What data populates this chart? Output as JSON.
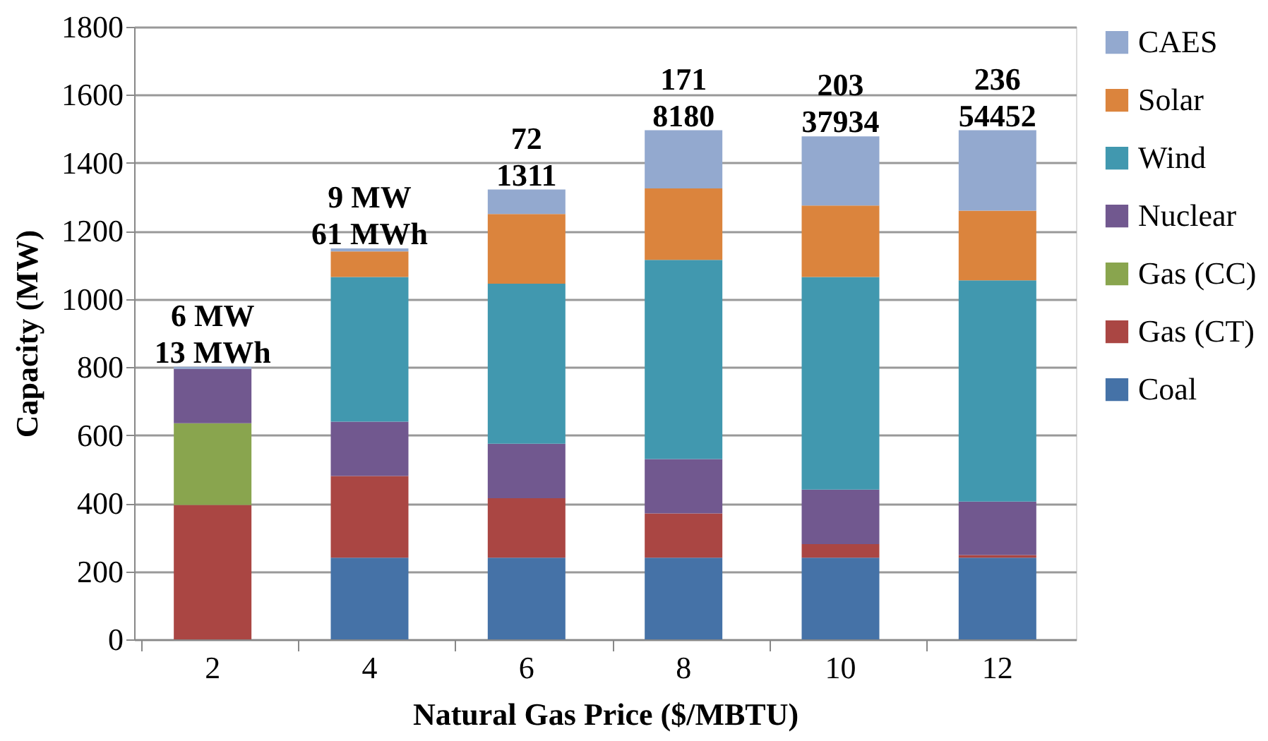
{
  "chart_data": {
    "type": "bar",
    "stacked": true,
    "xlabel": "Natural Gas Price ($/MBTU)",
    "ylabel": "Capacity (MW)",
    "categories": [
      "2",
      "4",
      "6",
      "8",
      "10",
      "12"
    ],
    "series": [
      {
        "name": "Coal",
        "color": "#4572a7",
        "values": [
          0,
          240,
          240,
          240,
          240,
          240
        ]
      },
      {
        "name": "Gas (CT)",
        "color": "#aa4643",
        "values": [
          395,
          240,
          175,
          130,
          40,
          8
        ]
      },
      {
        "name": "Gas (CC)",
        "color": "#89a54e",
        "values": [
          240,
          0,
          0,
          0,
          0,
          0
        ]
      },
      {
        "name": "Nuclear",
        "color": "#71588f",
        "values": [
          160,
          160,
          160,
          160,
          160,
          157
        ]
      },
      {
        "name": "Wind",
        "color": "#4198af",
        "values": [
          0,
          425,
          470,
          585,
          625,
          650
        ]
      },
      {
        "name": "Solar",
        "color": "#db843d",
        "values": [
          0,
          75,
          205,
          210,
          210,
          205
        ]
      },
      {
        "name": "CAES",
        "color": "#93a9cf",
        "values": [
          6,
          9,
          72,
          171,
          203,
          236
        ]
      }
    ],
    "ylim": [
      0,
      1800
    ],
    "yticks": [
      0,
      200,
      400,
      600,
      800,
      1000,
      1200,
      1400,
      1600,
      1800
    ],
    "grid": "y",
    "legend": "right",
    "annotations": [
      {
        "text": "6 MW\n13 MWh",
        "x": "2",
        "y": 801
      },
      {
        "text": "9 MW\n61 MWh",
        "x": "4",
        "y": 1149
      },
      {
        "text": "72\n1311",
        "x": "6",
        "y": 1322
      },
      {
        "text": "171\n8180",
        "x": "8",
        "y": 1496
      },
      {
        "text": "203\n37934",
        "x": "10",
        "y": 1478
      },
      {
        "text": "236\n54452",
        "x": "12",
        "y": 1496
      }
    ]
  }
}
